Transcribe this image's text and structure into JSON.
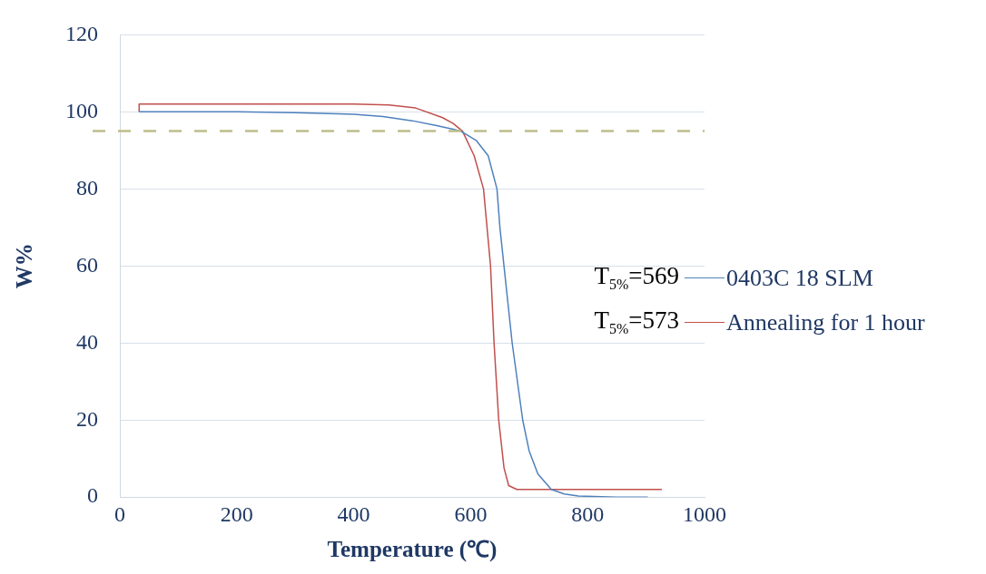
{
  "chart_data": {
    "type": "line",
    "xlabel": "Temperature (℃)",
    "ylabel": "W%",
    "xlim": [
      0,
      1000
    ],
    "xticks": [
      0,
      200,
      400,
      600,
      800,
      1000
    ],
    "ylim": [
      0,
      120
    ],
    "yticks": [
      0,
      20,
      40,
      60,
      80,
      100,
      120
    ],
    "grid": "y",
    "legend": "right",
    "marker": "none",
    "line_style": "solid",
    "annotations": [
      "T$_{5%}$=569",
      "T$_{5%}$=573"
    ],
    "ref_lines": [
      {
        "axis": "y",
        "value": 95,
        "color": "#bdbd8c",
        "line_style": "dashed"
      }
    ],
    "series": [
      {
        "name": "0403C 18 SLM",
        "color": "#4f81bd",
        "x": [
          33,
          100,
          200,
          300,
          400,
          450,
          500,
          540,
          570,
          583,
          610,
          630,
          645,
          650,
          657,
          664,
          671,
          680,
          689,
          700,
          715,
          738,
          760,
          784,
          850,
          903
        ],
        "values": [
          100,
          100,
          100,
          99.8,
          99.4,
          98.8,
          97.7,
          96.5,
          95.5,
          95,
          92.5,
          88.6,
          80,
          70,
          60,
          50,
          40,
          30,
          20,
          12,
          6,
          2,
          0.8,
          0.3,
          0,
          0
        ]
      },
      {
        "name": "Annealing for 1 hour",
        "color": "#c0504d",
        "x": [
          33,
          33,
          100,
          200,
          300,
          400,
          460,
          506,
          552,
          570,
          586,
          606,
          622,
          628,
          634,
          640,
          648,
          657,
          665,
          679,
          750,
          850,
          927
        ],
        "values": [
          100,
          102,
          102,
          102,
          102,
          102,
          101.8,
          101,
          98.5,
          97,
          95,
          88.6,
          80,
          70,
          60,
          40,
          20,
          7.6,
          3,
          2,
          2,
          2,
          2
        ]
      }
    ]
  }
}
